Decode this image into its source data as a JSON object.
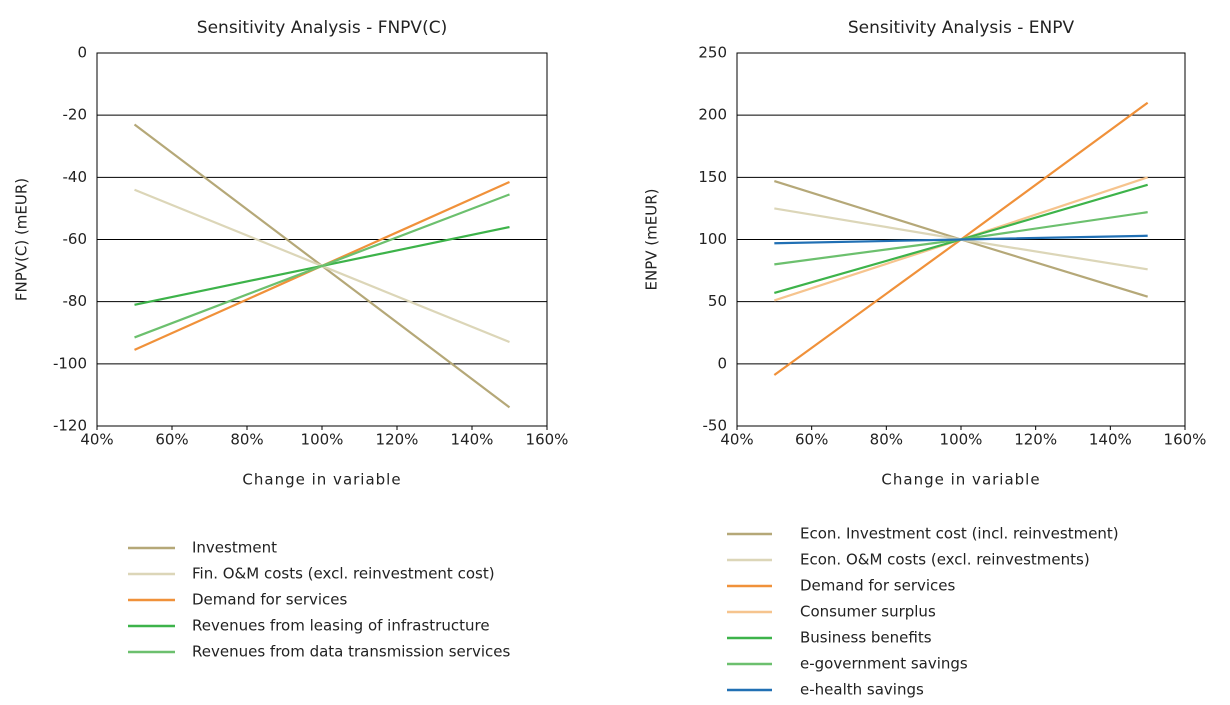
{
  "chart_data": [
    {
      "type": "line",
      "title": "Sensitivity Analysis - FNPV(C)",
      "x_label": "Change in variable",
      "y_label": "FNPV(C) (mEUR)",
      "x": [
        50,
        100,
        150
      ],
      "xlim": [
        40,
        160
      ],
      "xticks": [
        {
          "value": 40,
          "label": "40%"
        },
        {
          "value": 60,
          "label": "60%"
        },
        {
          "value": 80,
          "label": "80%"
        },
        {
          "value": 100,
          "label": "100%"
        },
        {
          "value": 120,
          "label": "120%"
        },
        {
          "value": 140,
          "label": "140%"
        },
        {
          "value": 160,
          "label": "160%"
        }
      ],
      "ylim": [
        -120,
        0
      ],
      "yticks": [
        -120,
        -100,
        -80,
        -60,
        -40,
        -20,
        0
      ],
      "grid": true,
      "series": [
        {
          "name": "Investment",
          "color": "#b5a878",
          "values": [
            -23,
            -68.5,
            -114
          ]
        },
        {
          "name": "Fin. O&M costs (excl. reinvestment cost)",
          "color": "#dcd6b8",
          "values": [
            -44,
            -68.5,
            -93
          ]
        },
        {
          "name": "Demand for services",
          "color": "#f0913a",
          "values": [
            -95.5,
            -68.5,
            -41.5
          ]
        },
        {
          "name": "Revenues from leasing of infrastructure",
          "color": "#3db34a",
          "values": [
            -81,
            -68.5,
            -56
          ]
        },
        {
          "name": "Revenues from data transmission services",
          "color": "#6cc06e",
          "values": [
            -91.5,
            -68.5,
            -45.5
          ]
        }
      ]
    },
    {
      "type": "line",
      "title": "Sensitivity Analysis - ENPV",
      "x_label": "Change in variable",
      "y_label": "ENPV (mEUR)",
      "x": [
        50,
        100,
        150
      ],
      "xlim": [
        40,
        160
      ],
      "xticks": [
        {
          "value": 40,
          "label": "40%"
        },
        {
          "value": 60,
          "label": "60%"
        },
        {
          "value": 80,
          "label": "80%"
        },
        {
          "value": 100,
          "label": "100%"
        },
        {
          "value": 120,
          "label": "120%"
        },
        {
          "value": 140,
          "label": "140%"
        },
        {
          "value": 160,
          "label": "160%"
        }
      ],
      "ylim": [
        -50,
        250
      ],
      "yticks": [
        -50,
        0,
        50,
        100,
        150,
        200,
        250
      ],
      "grid": true,
      "series": [
        {
          "name": "Econ. Investment cost (incl. reinvestment)",
          "color": "#b5a878",
          "values": [
            147,
            100,
            54
          ]
        },
        {
          "name": "Econ. O&M costs (excl. reinvestments)",
          "color": "#dcd6b8",
          "values": [
            125,
            100,
            76
          ]
        },
        {
          "name": "Demand for services",
          "color": "#f0913a",
          "values": [
            -9,
            100,
            210
          ]
        },
        {
          "name": "Consumer surplus",
          "color": "#f6c48e",
          "values": [
            51,
            100,
            150
          ]
        },
        {
          "name": "Business benefits",
          "color": "#3db34a",
          "values": [
            57,
            100,
            144
          ]
        },
        {
          "name": "e-government savings",
          "color": "#6cc06e",
          "values": [
            80,
            100,
            122
          ]
        },
        {
          "name": "e-health savings",
          "color": "#2170b4",
          "values": [
            97,
            100,
            103
          ]
        }
      ]
    }
  ]
}
